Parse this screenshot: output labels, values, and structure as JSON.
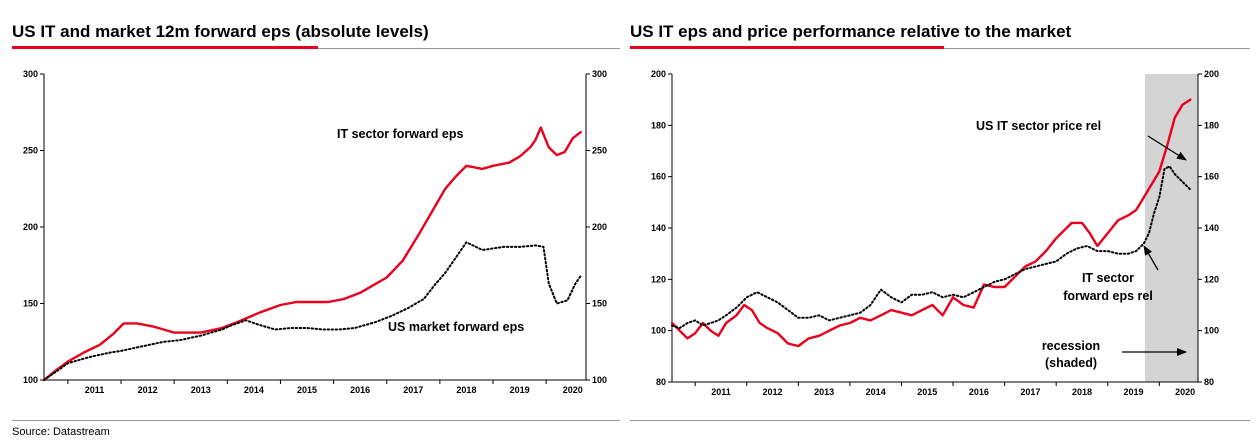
{
  "source": "Source: Datastream",
  "colors": {
    "red": "#e8001c",
    "black": "#000000",
    "recession_shade": "#d4d4d4",
    "rule_grey": "#9a9a9a"
  },
  "chart_data": [
    {
      "type": "line",
      "title": "US IT and market 12m forward eps (absolute levels)",
      "xlabel": "",
      "ylabel": "",
      "x_ticks": [
        "2011",
        "2012",
        "2013",
        "2014",
        "2015",
        "2016",
        "2017",
        "2018",
        "2019",
        "2020"
      ],
      "xlim": [
        2010.55,
        2020.75
      ],
      "ylim": [
        100,
        300
      ],
      "y_ticks": [
        100,
        150,
        200,
        250,
        300
      ],
      "y_ticks_right": [
        100,
        150,
        200,
        250,
        300
      ],
      "grid": false,
      "legend": "none",
      "annotations": [
        "IT sector forward eps",
        "US market forward eps"
      ],
      "series": [
        {
          "name": "IT sector forward eps",
          "style": "solid-red",
          "x": [
            2010.55,
            2010.8,
            2011.0,
            2011.3,
            2011.6,
            2011.85,
            2012.05,
            2012.3,
            2012.6,
            2013.0,
            2013.5,
            2013.9,
            2014.2,
            2014.6,
            2015.0,
            2015.3,
            2015.6,
            2015.9,
            2016.2,
            2016.5,
            2016.8,
            2017.0,
            2017.3,
            2017.6,
            2017.9,
            2018.1,
            2018.3,
            2018.5,
            2018.8,
            2019.0,
            2019.3,
            2019.5,
            2019.7,
            2019.8,
            2019.9,
            2020.05,
            2020.2,
            2020.35,
            2020.5,
            2020.65
          ],
          "y": [
            100,
            107,
            112,
            118,
            123,
            130,
            137,
            137,
            135,
            131,
            131,
            134,
            138,
            144,
            149,
            151,
            151,
            151,
            153,
            157,
            163,
            167,
            178,
            195,
            213,
            225,
            233,
            240,
            238,
            240,
            242,
            246,
            252,
            257,
            265,
            252,
            247,
            249,
            258,
            262
          ]
        },
        {
          "name": "US market forward eps",
          "style": "dotted-black",
          "x": [
            2010.55,
            2010.8,
            2011.0,
            2011.4,
            2011.8,
            2012.0,
            2012.4,
            2012.8,
            2013.1,
            2013.5,
            2013.9,
            2014.1,
            2014.35,
            2014.6,
            2014.9,
            2015.2,
            2015.5,
            2015.8,
            2016.1,
            2016.4,
            2016.8,
            2017.1,
            2017.4,
            2017.7,
            2017.9,
            2018.1,
            2018.3,
            2018.5,
            2018.8,
            2019.2,
            2019.5,
            2019.8,
            2019.95,
            2020.05,
            2020.2,
            2020.4,
            2020.55,
            2020.65
          ],
          "y": [
            100,
            106,
            111,
            115,
            118,
            119,
            122,
            125,
            126,
            129,
            133,
            136,
            139,
            136,
            133,
            134,
            134,
            133,
            133,
            134,
            138,
            142,
            147,
            153,
            162,
            170,
            180,
            190,
            185,
            187,
            187,
            188,
            187,
            163,
            150,
            152,
            163,
            168
          ]
        }
      ]
    },
    {
      "type": "line",
      "title": "US IT eps and price performance relative to the market",
      "xlabel": "",
      "ylabel": "",
      "x_ticks": [
        "2011",
        "2012",
        "2013",
        "2014",
        "2015",
        "2016",
        "2017",
        "2018",
        "2019",
        "2020"
      ],
      "xlim": [
        2010.55,
        2020.75
      ],
      "ylim": [
        80,
        200
      ],
      "y_ticks": [
        80,
        100,
        120,
        140,
        160,
        180,
        200
      ],
      "y_ticks_right": [
        80,
        100,
        120,
        140,
        160,
        180,
        200
      ],
      "grid": false,
      "legend": "none",
      "recession_shaded": [
        2019.72,
        2020.75
      ],
      "annotations": [
        "US IT sector price rel",
        "IT sector",
        "forward eps rel",
        "recession",
        "(shaded)"
      ],
      "series": [
        {
          "name": "US IT sector price rel",
          "style": "solid-red",
          "x": [
            2010.55,
            2010.7,
            2010.85,
            2011.0,
            2011.15,
            2011.3,
            2011.45,
            2011.6,
            2011.8,
            2011.95,
            2012.1,
            2012.25,
            2012.4,
            2012.6,
            2012.8,
            2013.0,
            2013.2,
            2013.4,
            2013.6,
            2013.8,
            2014.0,
            2014.2,
            2014.4,
            2014.6,
            2014.8,
            2015.0,
            2015.2,
            2015.4,
            2015.6,
            2015.8,
            2016.0,
            2016.2,
            2016.4,
            2016.6,
            2016.8,
            2017.0,
            2017.2,
            2017.4,
            2017.6,
            2017.8,
            2018.0,
            2018.15,
            2018.3,
            2018.5,
            2018.65,
            2018.8,
            2019.0,
            2019.2,
            2019.4,
            2019.55,
            2019.7,
            2019.85,
            2020.0,
            2020.15,
            2020.3,
            2020.45,
            2020.6
          ],
          "y": [
            103,
            100,
            97,
            99,
            103,
            100,
            98,
            103,
            106,
            110,
            108,
            103,
            101,
            99,
            95,
            94,
            97,
            98,
            100,
            102,
            103,
            105,
            104,
            106,
            108,
            107,
            106,
            108,
            110,
            106,
            113,
            110,
            109,
            118,
            117,
            117,
            121,
            125,
            127,
            131,
            136,
            139,
            142,
            142,
            138,
            133,
            138,
            143,
            145,
            147,
            152,
            157,
            162,
            172,
            183,
            188,
            190
          ]
        },
        {
          "name": "IT sector forward eps rel",
          "style": "dotted-black",
          "x": [
            2010.55,
            2010.7,
            2010.85,
            2011.0,
            2011.15,
            2011.3,
            2011.45,
            2011.6,
            2011.8,
            2012.0,
            2012.2,
            2012.4,
            2012.6,
            2012.8,
            2013.0,
            2013.2,
            2013.4,
            2013.6,
            2013.8,
            2014.0,
            2014.2,
            2014.4,
            2014.6,
            2014.8,
            2015.0,
            2015.2,
            2015.4,
            2015.6,
            2015.8,
            2016.0,
            2016.2,
            2016.4,
            2016.6,
            2016.8,
            2017.0,
            2017.2,
            2017.4,
            2017.6,
            2017.8,
            2018.0,
            2018.2,
            2018.4,
            2018.6,
            2018.8,
            2019.0,
            2019.2,
            2019.4,
            2019.55,
            2019.7,
            2019.8,
            2019.9,
            2020.0,
            2020.1,
            2020.2,
            2020.3,
            2020.45,
            2020.6
          ],
          "y": [
            102,
            101,
            103,
            104,
            102,
            103,
            104,
            106,
            109,
            113,
            115,
            113,
            111,
            108,
            105,
            105,
            106,
            104,
            105,
            106,
            107,
            110,
            116,
            113,
            111,
            114,
            114,
            115,
            113,
            114,
            113,
            115,
            117,
            119,
            120,
            122,
            124,
            125,
            126,
            127,
            130,
            132,
            133,
            131,
            131,
            130,
            130,
            131,
            134,
            138,
            146,
            152,
            163,
            164,
            161,
            158,
            155
          ]
        }
      ]
    }
  ]
}
